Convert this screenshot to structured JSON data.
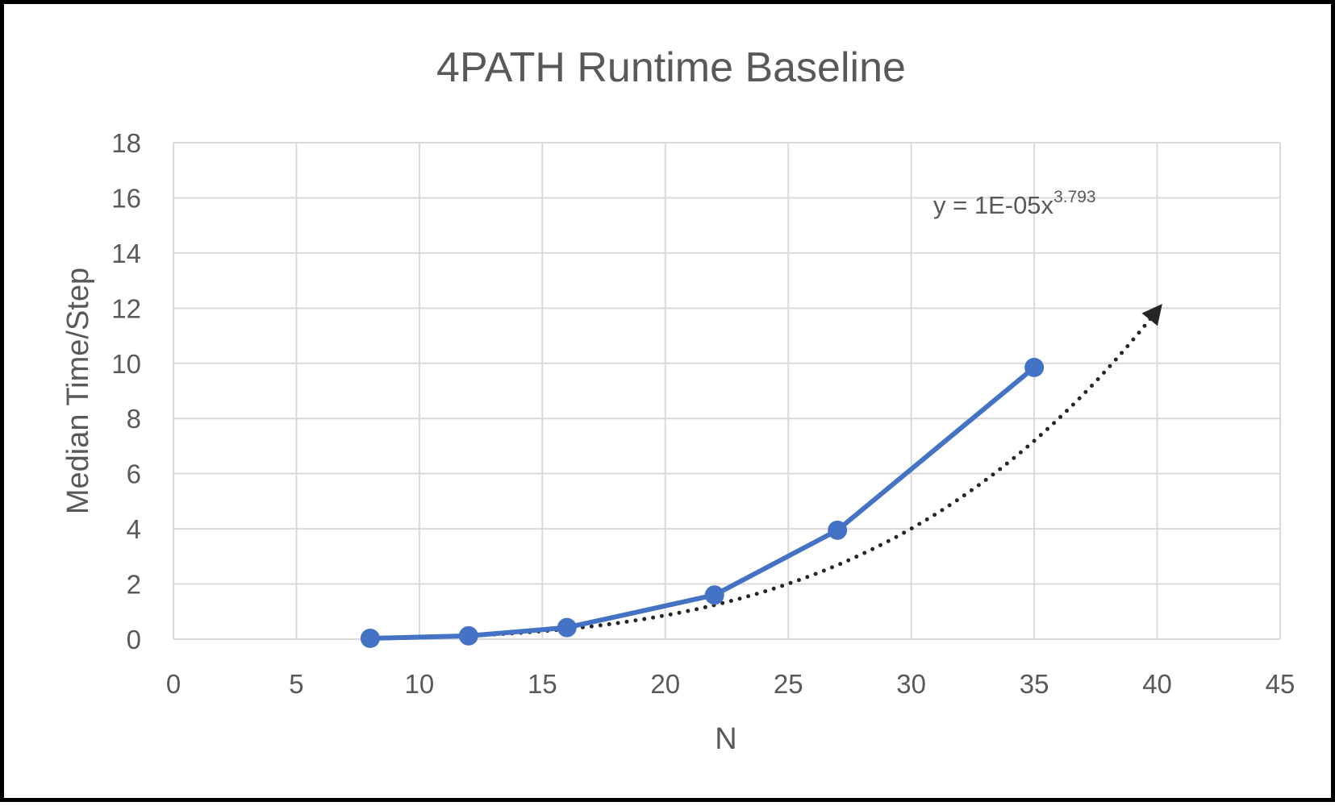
{
  "chart_data": {
    "type": "scatter",
    "title": "4PATH Runtime Baseline",
    "xlabel": "N",
    "ylabel": "Median Time/Step",
    "xlim": [
      0,
      45
    ],
    "ylim": [
      0,
      18
    ],
    "xticks": [
      0,
      5,
      10,
      15,
      20,
      25,
      30,
      35,
      40,
      45
    ],
    "yticks": [
      0,
      2,
      4,
      6,
      8,
      10,
      12,
      14,
      16,
      18
    ],
    "grid": true,
    "legend": "none",
    "series": [
      {
        "x": [
          8,
          12,
          16,
          22,
          27,
          35
        ],
        "y": [
          0.03,
          0.12,
          0.42,
          1.6,
          3.95,
          9.85
        ],
        "color": "#4472C4",
        "markers": true
      }
    ],
    "trendline": {
      "type": "power",
      "coefficient": 1e-05,
      "exponent": 3.793,
      "x_range": [
        8,
        40
      ],
      "color": "#262626",
      "style": "dotted",
      "arrow_end": true,
      "equation": {
        "prefix": "y = 1E-05x",
        "superscript": "3.793"
      }
    },
    "colors": {
      "grid": "#D9D9D9",
      "text": "#595959",
      "frame": "#000000"
    }
  }
}
